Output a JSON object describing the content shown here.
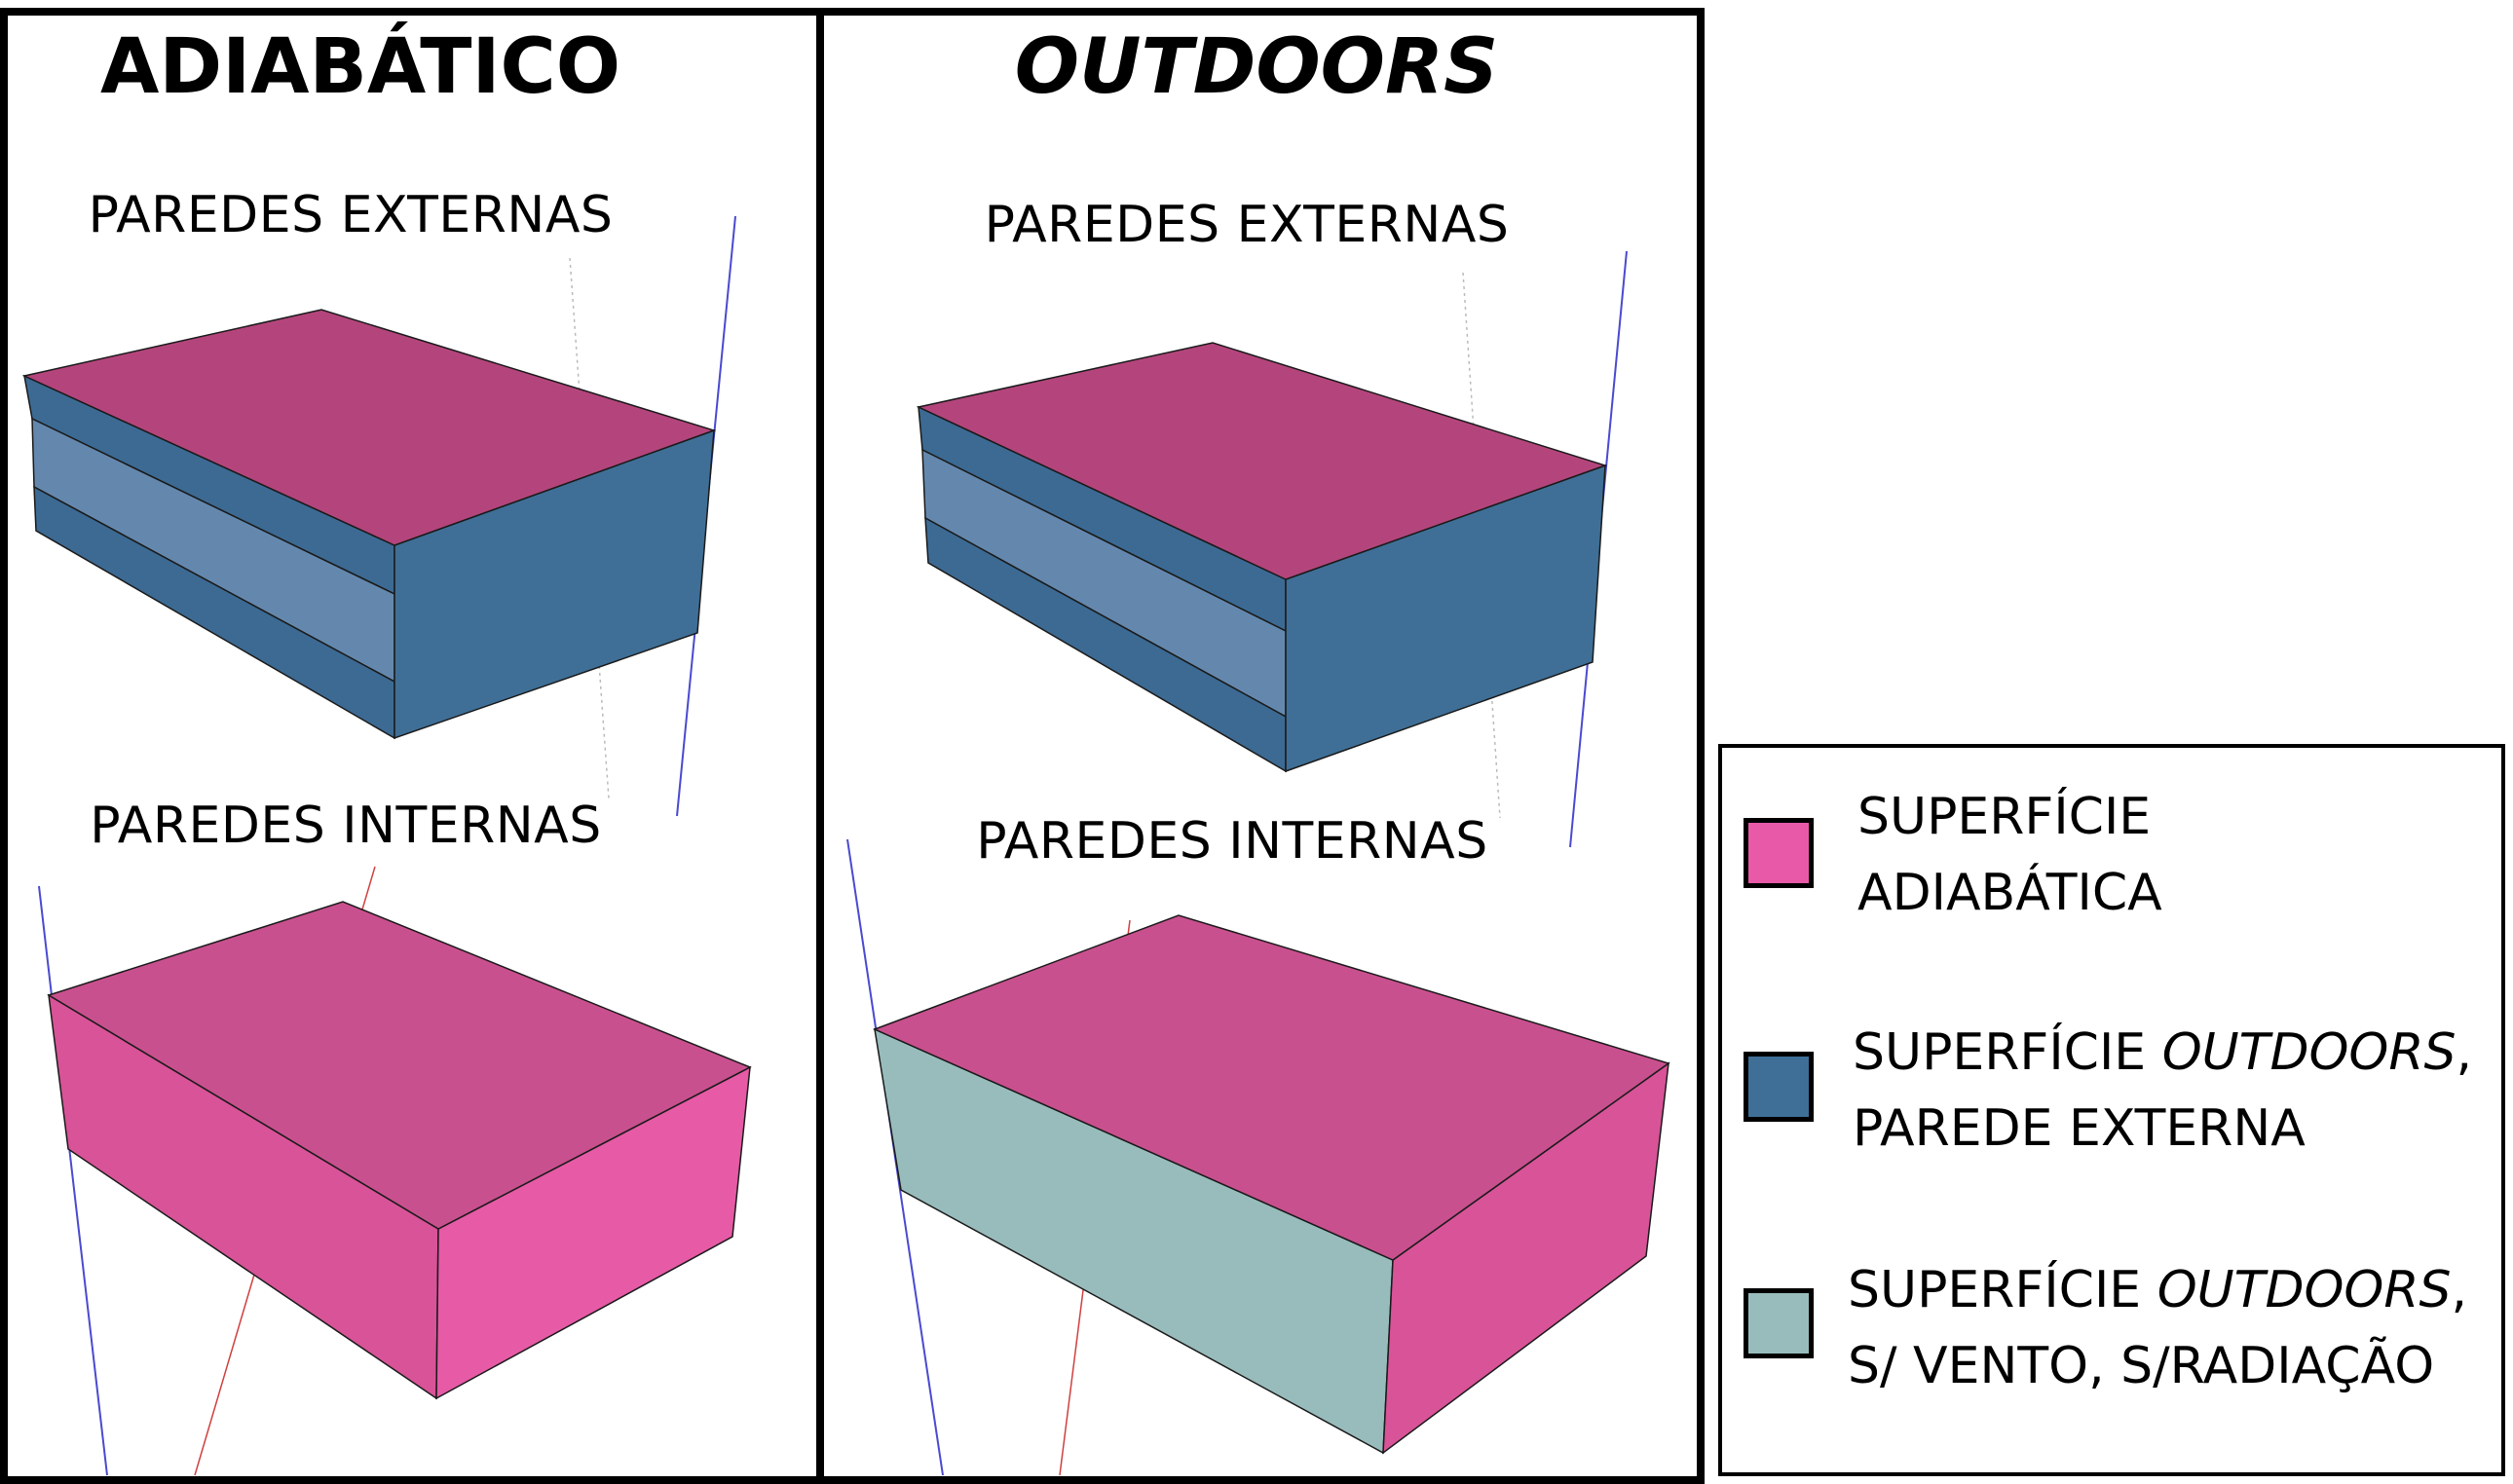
{
  "panels": {
    "left": {
      "title": "ADIABÁTICO",
      "top_label": "PAREDES EXTERNAS",
      "bottom_label": "PAREDES INTERNAS"
    },
    "right": {
      "title": "OUTDOORS",
      "top_label": "PAREDES EXTERNAS",
      "bottom_label": "PAREDES INTERNAS"
    }
  },
  "legend": {
    "items": [
      {
        "line1": "SUPERFÍCIE",
        "line1_italic": "",
        "line1_suffix": "",
        "line2": "ADIABÁTICA",
        "color": "#e85aa8"
      },
      {
        "line1": "SUPERFÍCIE ",
        "line1_italic": "OUTDOORS",
        "line1_suffix": ",",
        "line2": "PAREDE EXTERNA",
        "color": "#3f6f96"
      },
      {
        "line1": "SUPERFÍCIE ",
        "line1_italic": "OUTDOORS",
        "line1_suffix": ",",
        "line2": "S/ VENTO, S/RADIAÇÃO",
        "color": "#98bcbc"
      }
    ]
  },
  "colors": {
    "adiabatic_top": "#b4457c",
    "adiabatic_top_light": "#c9508e",
    "adiabatic_side": "#e65aa6",
    "adiabatic_side_dark": "#d85398",
    "outdoors_dark": "#3c6a93",
    "outdoors_band": "#6488ad",
    "outdoors_side": "#3f6f96",
    "no_wind": "#98bcbc",
    "axis_blue": "#4a4ad0",
    "axis_red": "#d04040",
    "axis_gray": "#bbbbbb"
  }
}
